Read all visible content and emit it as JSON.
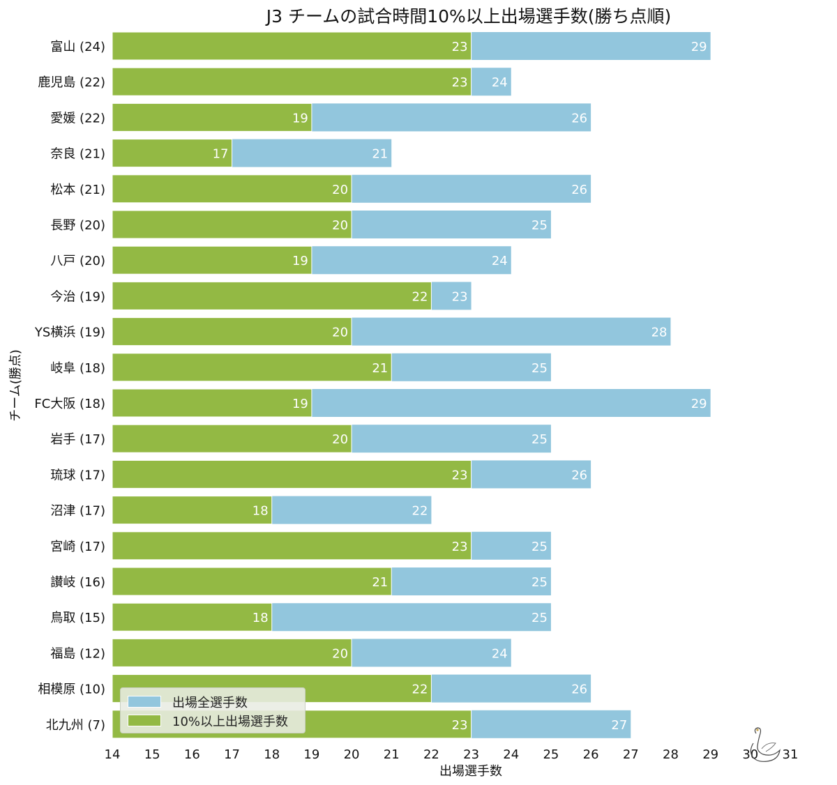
{
  "chart_data": {
    "type": "bar",
    "orientation": "horizontal",
    "stacking": "overlay",
    "title": "J3 チームの試合時間10%以上出場選手数(勝ち点順)",
    "xlabel": "出場選手数",
    "ylabel": "チーム(勝点)",
    "xlim": [
      14,
      31
    ],
    "xticks": [
      "14",
      "15",
      "16",
      "17",
      "18",
      "19",
      "20",
      "21",
      "22",
      "23",
      "24",
      "25",
      "26",
      "27",
      "28",
      "29",
      "30",
      "31"
    ],
    "grid": false,
    "legend_position": "bottom-left",
    "categories": [
      "富山 (24)",
      "鹿児島 (22)",
      "愛媛 (22)",
      "奈良 (21)",
      "松本 (21)",
      "長野 (20)",
      "八戸 (20)",
      "今治 (19)",
      "YS横浜 (19)",
      "岐阜 (18)",
      "FC大阪 (18)",
      "岩手 (17)",
      "琉球 (17)",
      "沼津 (17)",
      "宮崎 (17)",
      "讃岐 (16)",
      "鳥取 (15)",
      "福島 (12)",
      "相模原 (10)",
      "北九州 (7)"
    ],
    "series": [
      {
        "name": "出場全選手数",
        "color": "#92c6dd",
        "values": [
          29,
          24,
          26,
          21,
          26,
          25,
          24,
          23,
          28,
          25,
          29,
          25,
          26,
          22,
          25,
          25,
          25,
          24,
          26,
          27
        ]
      },
      {
        "name": "10%以上出場選手数",
        "color": "#93b944",
        "values": [
          23,
          23,
          19,
          17,
          20,
          20,
          19,
          22,
          20,
          21,
          19,
          20,
          23,
          18,
          23,
          21,
          18,
          20,
          22,
          23
        ]
      }
    ]
  }
}
